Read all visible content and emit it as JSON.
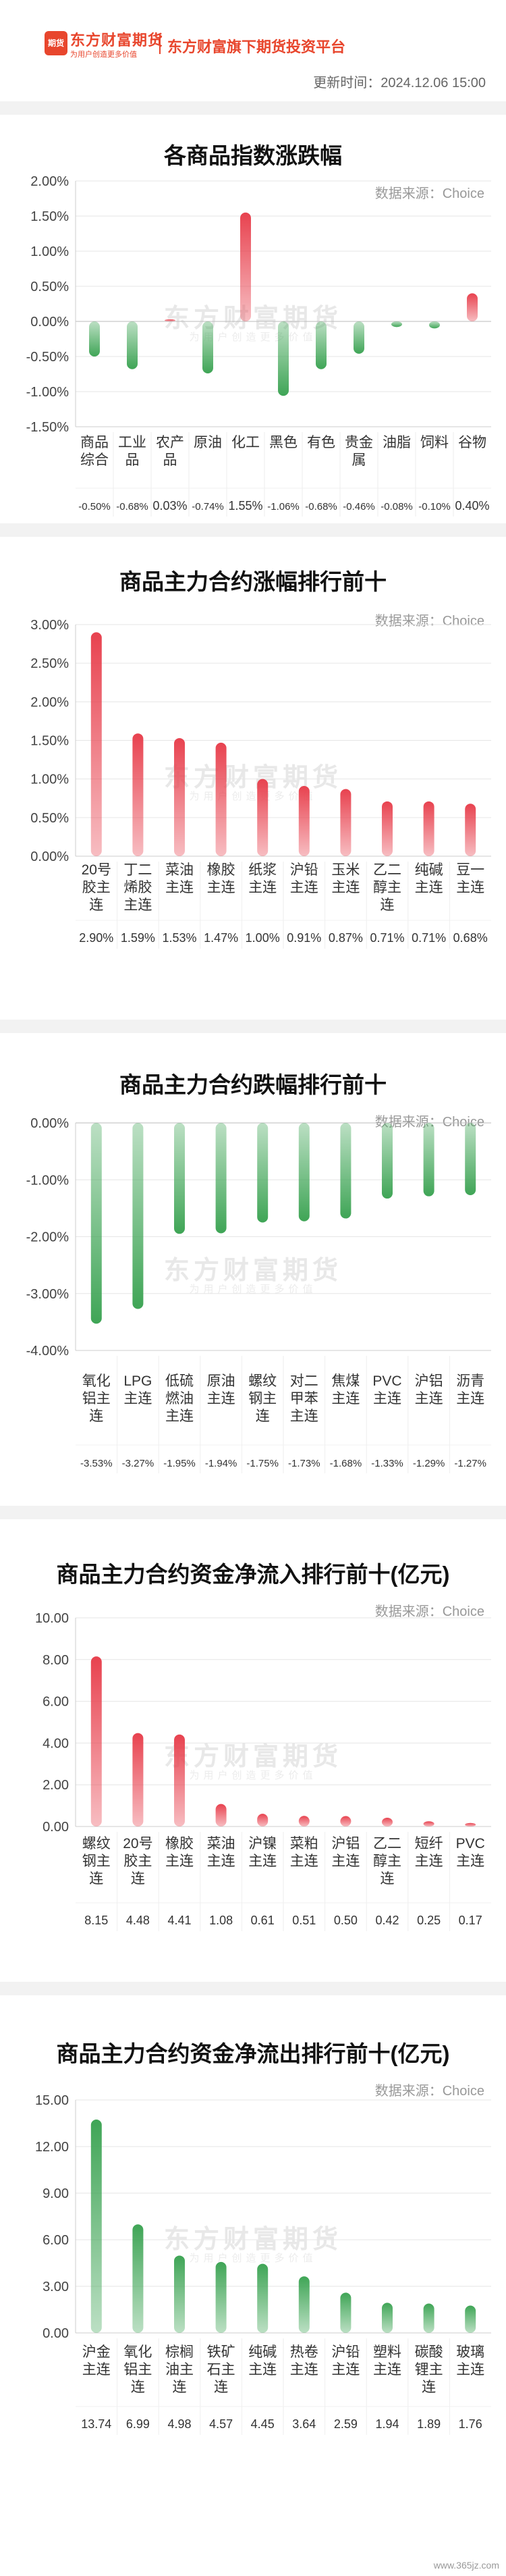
{
  "header": {
    "logo_text": "东方财富期货",
    "logo_sub": "为用户创造更多价值",
    "logo_icon": "期货",
    "platform": "东方财富旗下期货投资平台",
    "update_time": "更新时间：2024.12.06 15:00"
  },
  "watermark": {
    "main": "东方财富期货",
    "sub": "为用户创造更多价值"
  },
  "footer_watermark": "www.365jz.com",
  "colors": {
    "up": "#e8424f",
    "down": "#3fa556",
    "brand": "#e8462d"
  },
  "chart_data": [
    {
      "type": "bar",
      "title": "各商品指数涨跌幅",
      "source": "数据来源：Choice",
      "categories": [
        [
          "商品",
          "综合"
        ],
        [
          "工业",
          "品"
        ],
        [
          "农产",
          "品"
        ],
        [
          "原油"
        ],
        [
          "化工"
        ],
        [
          "黑色"
        ],
        [
          "有色"
        ],
        [
          "贵金",
          "属"
        ],
        [
          "油脂"
        ],
        [
          "饲料"
        ],
        [
          "谷物"
        ]
      ],
      "values": [
        -0.5,
        -0.68,
        0.03,
        -0.74,
        1.55,
        -1.06,
        -0.68,
        -0.46,
        -0.08,
        -0.1,
        0.4
      ],
      "value_labels": [
        "-0.50%",
        "-0.68%",
        "0.03%",
        "-0.74%",
        "1.55%",
        "-1.06%",
        "-0.68%",
        "-0.46%",
        "-0.08%",
        "-0.10%",
        "0.40%"
      ],
      "ylim": [
        -1.5,
        2.0
      ],
      "yticks": [
        2.0,
        1.5,
        1.0,
        0.5,
        0.0,
        -0.5,
        -1.0,
        -1.5
      ],
      "ytick_labels": [
        "2.00%",
        "1.50%",
        "1.00%",
        "0.50%",
        "0.00%",
        "-0.50%",
        "-1.00%",
        "-1.50%"
      ],
      "grid": true
    },
    {
      "type": "bar",
      "title": "商品主力合约涨幅排行前十",
      "source": "数据来源：Choice",
      "categories": [
        [
          "20号",
          "胶主",
          "连"
        ],
        [
          "丁二",
          "烯胶",
          "主连"
        ],
        [
          "菜油",
          "主连"
        ],
        [
          "橡胶",
          "主连"
        ],
        [
          "纸浆",
          "主连"
        ],
        [
          "沪铅",
          "主连"
        ],
        [
          "玉米",
          "主连"
        ],
        [
          "乙二",
          "醇主",
          "连"
        ],
        [
          "纯碱",
          "主连"
        ],
        [
          "豆一",
          "主连"
        ]
      ],
      "values": [
        2.9,
        1.59,
        1.53,
        1.47,
        1.0,
        0.91,
        0.87,
        0.71,
        0.71,
        0.68
      ],
      "value_labels": [
        "2.90%",
        "1.59%",
        "1.53%",
        "1.47%",
        "1.00%",
        "0.91%",
        "0.87%",
        "0.71%",
        "0.71%",
        "0.68%"
      ],
      "ylim": [
        0,
        3.0
      ],
      "yticks": [
        3.0,
        2.5,
        2.0,
        1.5,
        1.0,
        0.5,
        0.0
      ],
      "ytick_labels": [
        "3.00%",
        "2.50%",
        "2.00%",
        "1.50%",
        "1.00%",
        "0.50%",
        "0.00%"
      ],
      "grid": true
    },
    {
      "type": "bar",
      "title": "商品主力合约跌幅排行前十",
      "source": "数据来源：Choice",
      "categories": [
        [
          "氧化",
          "铝主",
          "连"
        ],
        [
          "LPG",
          "主连"
        ],
        [
          "低硫",
          "燃油",
          "主连"
        ],
        [
          "原油",
          "主连"
        ],
        [
          "螺纹",
          "钢主",
          "连"
        ],
        [
          "对二",
          "甲苯",
          "主连"
        ],
        [
          "焦煤",
          "主连"
        ],
        [
          "PVC",
          "主连"
        ],
        [
          "沪铝",
          "主连"
        ],
        [
          "沥青",
          "主连"
        ]
      ],
      "values": [
        -3.53,
        -3.27,
        -1.95,
        -1.94,
        -1.75,
        -1.73,
        -1.68,
        -1.33,
        -1.29,
        -1.27
      ],
      "value_labels": [
        "-3.53%",
        "-3.27%",
        "-1.95%",
        "-1.94%",
        "-1.75%",
        "-1.73%",
        "-1.68%",
        "-1.33%",
        "-1.29%",
        "-1.27%"
      ],
      "ylim": [
        -4.0,
        0.0
      ],
      "yticks": [
        0.0,
        -1.0,
        -2.0,
        -3.0,
        -4.0
      ],
      "ytick_labels": [
        "0.00%",
        "-1.00%",
        "-2.00%",
        "-3.00%",
        "-4.00%"
      ],
      "grid": true
    },
    {
      "type": "bar",
      "title": "商品主力合约资金净流入排行前十(亿元)",
      "source": "数据来源：Choice",
      "categories": [
        [
          "螺纹",
          "钢主",
          "连"
        ],
        [
          "20号",
          "胶主",
          "连"
        ],
        [
          "橡胶",
          "主连"
        ],
        [
          "菜油",
          "主连"
        ],
        [
          "沪镍",
          "主连"
        ],
        [
          "菜粕",
          "主连"
        ],
        [
          "沪铝",
          "主连"
        ],
        [
          "乙二",
          "醇主",
          "连"
        ],
        [
          "短纤",
          "主连"
        ],
        [
          "PVC",
          "主连"
        ]
      ],
      "values": [
        8.15,
        4.48,
        4.41,
        1.08,
        0.61,
        0.51,
        0.5,
        0.42,
        0.25,
        0.17
      ],
      "value_labels": [
        "8.15",
        "4.48",
        "4.41",
        "1.08",
        "0.61",
        "0.51",
        "0.50",
        "0.42",
        "0.25",
        "0.17"
      ],
      "ylim": [
        0,
        10.0
      ],
      "yticks": [
        10.0,
        8.0,
        6.0,
        4.0,
        2.0,
        0.0
      ],
      "ytick_labels": [
        "10.00",
        "8.00",
        "6.00",
        "4.00",
        "2.00",
        "0.00"
      ],
      "grid": true
    },
    {
      "type": "bar",
      "title": "商品主力合约资金净流出排行前十(亿元)",
      "source": "数据来源：Choice",
      "categories": [
        [
          "沪金",
          "主连"
        ],
        [
          "氧化",
          "铝主",
          "连"
        ],
        [
          "棕榈",
          "油主",
          "连"
        ],
        [
          "铁矿",
          "石主",
          "连"
        ],
        [
          "纯碱",
          "主连"
        ],
        [
          "热卷",
          "主连"
        ],
        [
          "沪铅",
          "主连"
        ],
        [
          "塑料",
          "主连"
        ],
        [
          "碳酸",
          "锂主",
          "连"
        ],
        [
          "玻璃",
          "主连"
        ]
      ],
      "values": [
        13.74,
        6.99,
        4.98,
        4.57,
        4.45,
        3.64,
        2.59,
        1.94,
        1.89,
        1.76
      ],
      "value_labels": [
        "13.74",
        "6.99",
        "4.98",
        "4.57",
        "4.45",
        "3.64",
        "2.59",
        "1.94",
        "1.89",
        "1.76"
      ],
      "ylim": [
        0,
        15.0
      ],
      "yticks": [
        15.0,
        12.0,
        9.0,
        6.0,
        3.0,
        0.0
      ],
      "ytick_labels": [
        "15.00",
        "12.00",
        "9.00",
        "6.00",
        "3.00",
        "0.00"
      ],
      "grid": true,
      "bar_color": "down"
    }
  ]
}
